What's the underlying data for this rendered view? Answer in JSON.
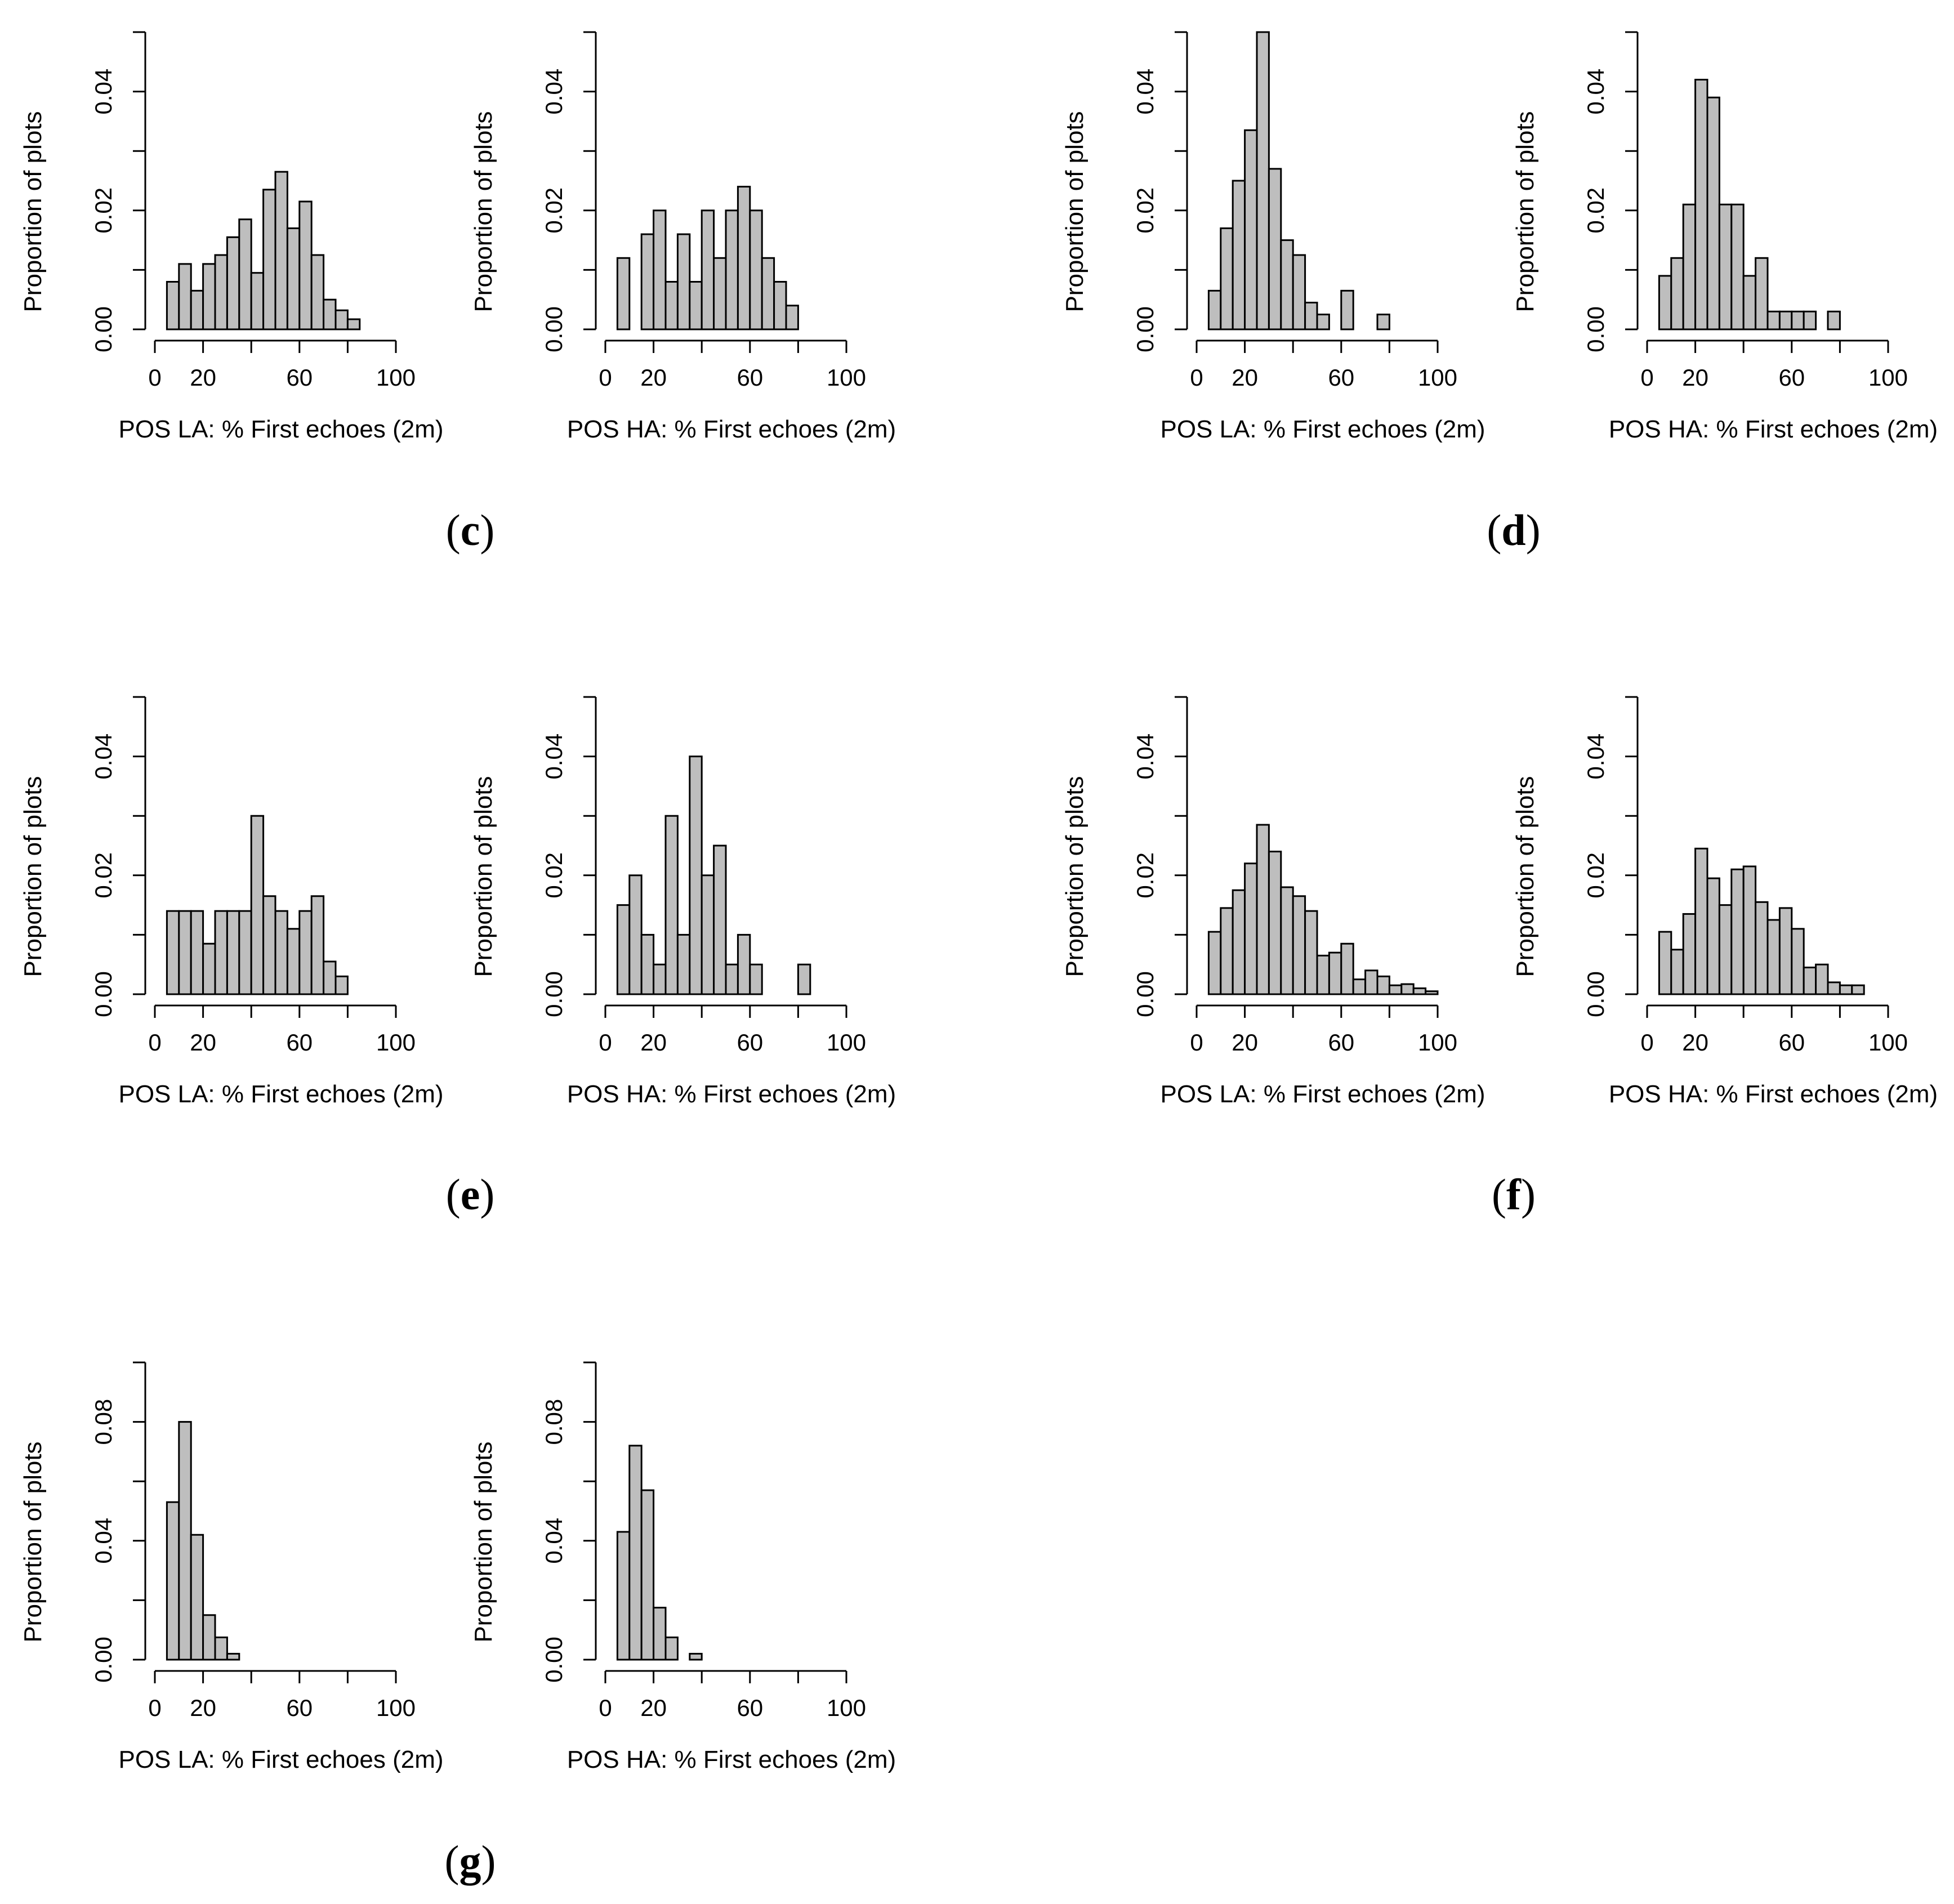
{
  "figure": {
    "bar_color": "#bebebe",
    "panel_labels": [
      {
        "id": "c",
        "open": "(",
        "letter": "c",
        "close": ")"
      },
      {
        "id": "d",
        "open": "(",
        "letter": "d",
        "close": ")"
      },
      {
        "id": "e",
        "open": "(",
        "letter": "e",
        "close": ")"
      },
      {
        "id": "f",
        "open": "(",
        "letter": "f",
        "close": ")"
      },
      {
        "id": "g",
        "open": "(",
        "letter": "g",
        "close": ")"
      }
    ]
  },
  "chart_data": [
    {
      "id": "c-la",
      "panel": "c",
      "type": "bar",
      "title": "",
      "xlabel": "POS LA: % First echoes (2m)",
      "ylabel": "Proportion of plots",
      "xlim": [
        0,
        100
      ],
      "ylim": [
        0,
        0.05
      ],
      "xticks": [
        "0",
        "20",
        "60",
        "100"
      ],
      "yticks": [
        "0.00",
        "0.02",
        "0.04"
      ],
      "bin_width": 5,
      "bin_start": 5,
      "values": [
        0.008,
        0.011,
        0.0065,
        0.011,
        0.0125,
        0.0155,
        0.0185,
        0.0095,
        0.0235,
        0.0265,
        0.017,
        0.0215,
        0.0125,
        0.005,
        0.0032,
        0.0017
      ]
    },
    {
      "id": "c-ha",
      "panel": "c",
      "type": "bar",
      "title": "",
      "xlabel": "POS HA: % First echoes (2m)",
      "ylabel": "Proportion of plots",
      "xlim": [
        0,
        100
      ],
      "ylim": [
        0,
        0.05
      ],
      "xticks": [
        "0",
        "20",
        "60",
        "100"
      ],
      "yticks": [
        "0.00",
        "0.02",
        "0.04"
      ],
      "bin_width": 5,
      "bin_start": 5,
      "values": [
        0.012,
        0.0,
        0.016,
        0.02,
        0.008,
        0.016,
        0.008,
        0.02,
        0.012,
        0.02,
        0.024,
        0.02,
        0.012,
        0.008,
        0.004
      ]
    },
    {
      "id": "d-la",
      "panel": "d",
      "type": "bar",
      "title": "",
      "xlabel": "POS LA: % First echoes (2m)",
      "ylabel": "Proportion of plots",
      "xlim": [
        0,
        100
      ],
      "ylim": [
        0,
        0.05
      ],
      "xticks": [
        "0",
        "20",
        "60",
        "100"
      ],
      "yticks": [
        "0.00",
        "0.02",
        "0.04"
      ],
      "bin_width": 5,
      "bin_start": 5,
      "values": [
        0.0065,
        0.017,
        0.025,
        0.0335,
        0.05,
        0.027,
        0.015,
        0.0125,
        0.0045,
        0.0025,
        0.0,
        0.0065,
        0.0,
        0.0,
        0.0025
      ]
    },
    {
      "id": "d-ha",
      "panel": "d",
      "type": "bar",
      "title": "",
      "xlabel": "POS HA: % First echoes (2m)",
      "ylabel": "Proportion of plots",
      "xlim": [
        0,
        100
      ],
      "ylim": [
        0,
        0.05
      ],
      "xticks": [
        "0",
        "20",
        "60",
        "100"
      ],
      "yticks": [
        "0.00",
        "0.02",
        "0.04"
      ],
      "bin_width": 5,
      "bin_start": 5,
      "values": [
        0.009,
        0.012,
        0.021,
        0.042,
        0.039,
        0.021,
        0.021,
        0.009,
        0.012,
        0.003,
        0.003,
        0.003,
        0.003,
        0.0,
        0.003
      ]
    },
    {
      "id": "e-la",
      "panel": "e",
      "type": "bar",
      "title": "",
      "xlabel": "POS LA: % First echoes (2m)",
      "ylabel": "Proportion of plots",
      "xlim": [
        0,
        100
      ],
      "ylim": [
        0,
        0.05
      ],
      "xticks": [
        "0",
        "20",
        "60",
        "100"
      ],
      "yticks": [
        "0.00",
        "0.02",
        "0.04"
      ],
      "bin_width": 5,
      "bin_start": 5,
      "values": [
        0.014,
        0.014,
        0.014,
        0.0085,
        0.014,
        0.014,
        0.014,
        0.03,
        0.0165,
        0.014,
        0.011,
        0.014,
        0.0165,
        0.0055,
        0.003
      ]
    },
    {
      "id": "e-ha",
      "panel": "e",
      "type": "bar",
      "title": "",
      "xlabel": "POS HA: % First echoes (2m)",
      "ylabel": "Proportion of plots",
      "xlim": [
        0,
        100
      ],
      "ylim": [
        0,
        0.05
      ],
      "xticks": [
        "0",
        "20",
        "60",
        "100"
      ],
      "yticks": [
        "0.00",
        "0.02",
        "0.04"
      ],
      "bin_width": 5,
      "bin_start": 5,
      "values": [
        0.015,
        0.02,
        0.01,
        0.005,
        0.03,
        0.01,
        0.04,
        0.02,
        0.025,
        0.005,
        0.01,
        0.005,
        0.0,
        0.0,
        0.0,
        0.005
      ]
    },
    {
      "id": "f-la",
      "panel": "f",
      "type": "bar",
      "title": "",
      "xlabel": "POS LA: % First echoes (2m)",
      "ylabel": "Proportion of plots",
      "xlim": [
        0,
        100
      ],
      "ylim": [
        0,
        0.05
      ],
      "xticks": [
        "0",
        "20",
        "60",
        "100"
      ],
      "yticks": [
        "0.00",
        "0.02",
        "0.04"
      ],
      "bin_width": 5,
      "bin_start": 5,
      "values": [
        0.0105,
        0.0145,
        0.0175,
        0.022,
        0.0285,
        0.024,
        0.018,
        0.0165,
        0.014,
        0.0065,
        0.007,
        0.0085,
        0.0025,
        0.004,
        0.003,
        0.0015,
        0.0017,
        0.001,
        0.0005
      ]
    },
    {
      "id": "f-ha",
      "panel": "f",
      "type": "bar",
      "title": "",
      "xlabel": "POS HA: % First echoes (2m)",
      "ylabel": "Proportion of plots",
      "xlim": [
        0,
        100
      ],
      "ylim": [
        0,
        0.05
      ],
      "xticks": [
        "0",
        "20",
        "60",
        "100"
      ],
      "yticks": [
        "0.00",
        "0.02",
        "0.04"
      ],
      "bin_width": 5,
      "bin_start": 5,
      "values": [
        0.0105,
        0.0075,
        0.0135,
        0.0245,
        0.0195,
        0.015,
        0.021,
        0.0215,
        0.0155,
        0.0125,
        0.0145,
        0.011,
        0.0045,
        0.005,
        0.002,
        0.0015,
        0.0015
      ]
    },
    {
      "id": "g-la",
      "panel": "g",
      "type": "bar",
      "title": "",
      "xlabel": "POS LA: % First echoes (2m)",
      "ylabel": "Proportion of plots",
      "xlim": [
        0,
        100
      ],
      "ylim": [
        0,
        0.1
      ],
      "xticks": [
        "0",
        "20",
        "60",
        "100"
      ],
      "yticks": [
        "0.00",
        "0.04",
        "0.08"
      ],
      "bin_width": 5,
      "bin_start": 5,
      "values": [
        0.053,
        0.08,
        0.042,
        0.015,
        0.0075,
        0.002
      ]
    },
    {
      "id": "g-ha",
      "panel": "g",
      "type": "bar",
      "title": "",
      "xlabel": "POS HA: % First echoes (2m)",
      "ylabel": "Proportion of plots",
      "xlim": [
        0,
        100
      ],
      "ylim": [
        0,
        0.1
      ],
      "xticks": [
        "0",
        "20",
        "60",
        "100"
      ],
      "yticks": [
        "0.00",
        "0.04",
        "0.08"
      ],
      "bin_width": 5,
      "bin_start": 5,
      "values": [
        0.043,
        0.072,
        0.057,
        0.0175,
        0.0075,
        0.0,
        0.002
      ]
    }
  ]
}
